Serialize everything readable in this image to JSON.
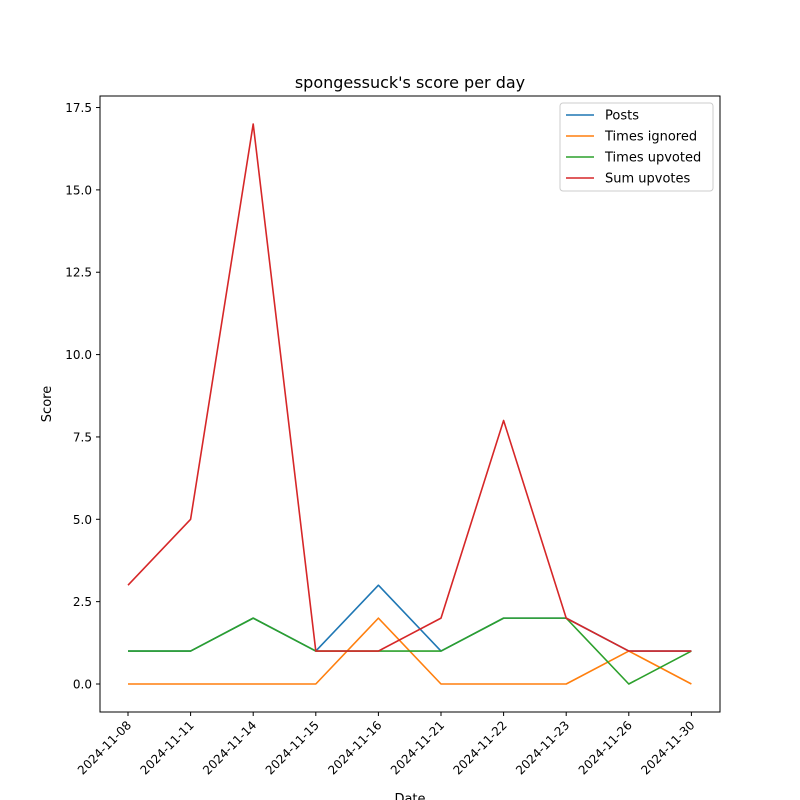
{
  "chart_data": {
    "type": "line",
    "title": "spongessuck's score per day",
    "xlabel": "Date",
    "ylabel": "Score",
    "categories": [
      "2024-11-08",
      "2024-11-11",
      "2024-11-14",
      "2024-11-15",
      "2024-11-16",
      "2024-11-21",
      "2024-11-22",
      "2024-11-23",
      "2024-11-26",
      "2024-11-30"
    ],
    "ylim": [
      -0.85,
      17.85
    ],
    "yticks": [
      0.0,
      2.5,
      5.0,
      7.5,
      10.0,
      12.5,
      15.0,
      17.5
    ],
    "ytick_labels": [
      "0.0",
      "2.5",
      "5.0",
      "7.5",
      "10.0",
      "12.5",
      "15.0",
      "17.5"
    ],
    "grid": false,
    "legend_position": "top-right",
    "series": [
      {
        "name": "Posts",
        "color": "#1f77b4",
        "values": [
          1,
          1,
          2,
          1,
          3,
          1,
          2,
          2,
          1,
          1
        ]
      },
      {
        "name": "Times ignored",
        "color": "#ff7f0e",
        "values": [
          0,
          0,
          0,
          0,
          2,
          0,
          0,
          0,
          1,
          0
        ]
      },
      {
        "name": "Times upvoted",
        "color": "#2ca02c",
        "values": [
          1,
          1,
          2,
          1,
          1,
          1,
          2,
          2,
          0,
          1
        ]
      },
      {
        "name": "Sum upvotes",
        "color": "#d62728",
        "values": [
          3,
          5,
          17,
          1,
          1,
          2,
          8,
          2,
          1,
          1
        ]
      }
    ]
  }
}
